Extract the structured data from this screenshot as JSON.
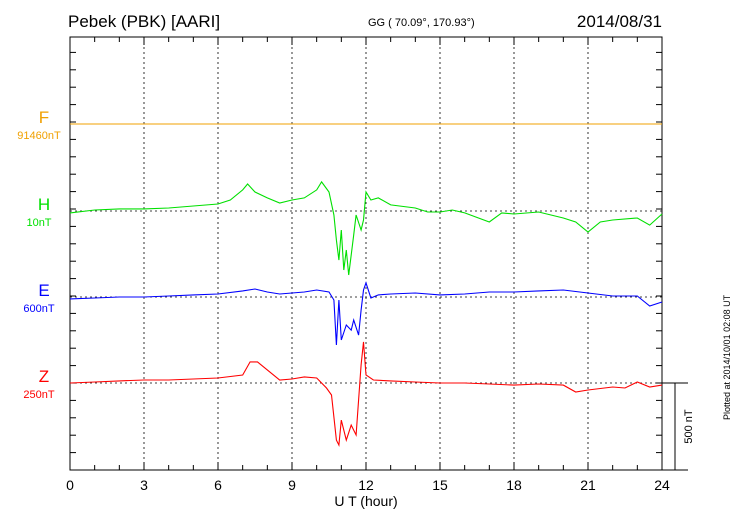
{
  "header": {
    "title": "Pebek (PBK)  [AARI]",
    "coords": "GG ( 70.09°, 170.93°)",
    "date": "2014/08/31"
  },
  "footer": {
    "plotted": "Plotted at 2014/10/01 02:08 UT"
  },
  "chart_data": {
    "type": "line",
    "xlabel": "U T (hour)",
    "xlim": [
      0,
      24
    ],
    "xticks": [
      "0",
      "3",
      "6",
      "9",
      "12",
      "15",
      "18",
      "21",
      "24"
    ],
    "scale_bar": "500 nT",
    "scale_bar_nT": 500,
    "grid": "dotted vertical every 3 hours",
    "series": [
      {
        "name": "F",
        "baseline_label": "91460nT",
        "color": "#f0a000",
        "x": [
          0,
          24
        ],
        "y": [
          0,
          0
        ]
      },
      {
        "name": "H",
        "baseline_label": "10nT",
        "color": "#00e000",
        "x": [
          0,
          1,
          2,
          3,
          4,
          5,
          6,
          6.5,
          7,
          7.2,
          7.5,
          8,
          8.5,
          9,
          9.5,
          10,
          10.2,
          10.5,
          10.7,
          10.8,
          10.9,
          11,
          11.1,
          11.2,
          11.3,
          11.5,
          11.6,
          11.8,
          11.9,
          12,
          12.2,
          12.5,
          13,
          14,
          14.5,
          15,
          15.5,
          16,
          17,
          17.5,
          18,
          19,
          20,
          20.5,
          21,
          21.5,
          22,
          23,
          23.5,
          24
        ],
        "y": [
          -11,
          6,
          12,
          12,
          17,
          29,
          40,
          63,
          121,
          155,
          109,
          75,
          46,
          63,
          75,
          121,
          167,
          109,
          -23,
          -167,
          -282,
          -109,
          -339,
          -224,
          -368,
          -138,
          -23,
          -109,
          -52,
          109,
          63,
          75,
          35,
          17,
          -6,
          -6,
          6,
          -11,
          -63,
          -11,
          -17,
          -6,
          -40,
          -63,
          -121,
          -63,
          -52,
          -40,
          -81,
          -17
        ]
      },
      {
        "name": "E",
        "baseline_label": "600nT",
        "color": "#0000ff",
        "x": [
          0,
          1,
          2,
          3,
          4,
          5,
          6,
          7,
          7.5,
          8,
          8.5,
          9,
          9.5,
          10,
          10.5,
          10.7,
          10.8,
          10.9,
          11,
          11.2,
          11.4,
          11.5,
          11.7,
          11.8,
          11.9,
          12,
          12.2,
          12.5,
          13,
          14,
          15,
          16,
          17,
          18,
          19,
          20,
          21,
          22,
          23,
          23.5,
          24
        ],
        "y": [
          -11,
          -6,
          0,
          0,
          6,
          12,
          17,
          35,
          46,
          29,
          17,
          23,
          29,
          40,
          29,
          -17,
          -276,
          -17,
          -247,
          -161,
          -190,
          -132,
          -219,
          -75,
          40,
          81,
          -6,
          12,
          17,
          23,
          12,
          17,
          29,
          29,
          35,
          40,
          23,
          6,
          6,
          -52,
          -29
        ]
      },
      {
        "name": "Z",
        "baseline_label": "250nT",
        "color": "#ff0000",
        "x": [
          0,
          1,
          2,
          3,
          4,
          5,
          6,
          7,
          7.3,
          7.6,
          8,
          8.5,
          9,
          9.5,
          10,
          10.4,
          10.6,
          10.8,
          10.9,
          11,
          11.2,
          11.4,
          11.6,
          11.8,
          11.9,
          12,
          12.3,
          13,
          14,
          15,
          16,
          17,
          18,
          19,
          20,
          20.5,
          21,
          22,
          22.5,
          23,
          23.5,
          24
        ],
        "y": [
          0,
          6,
          12,
          17,
          17,
          23,
          29,
          46,
          121,
          121,
          75,
          17,
          23,
          35,
          29,
          -29,
          -69,
          -328,
          -357,
          -213,
          -328,
          -242,
          -299,
          104,
          236,
          46,
          17,
          12,
          6,
          0,
          0,
          -6,
          -12,
          -6,
          -12,
          -52,
          -40,
          -23,
          -29,
          6,
          -23,
          -12
        ]
      }
    ]
  }
}
